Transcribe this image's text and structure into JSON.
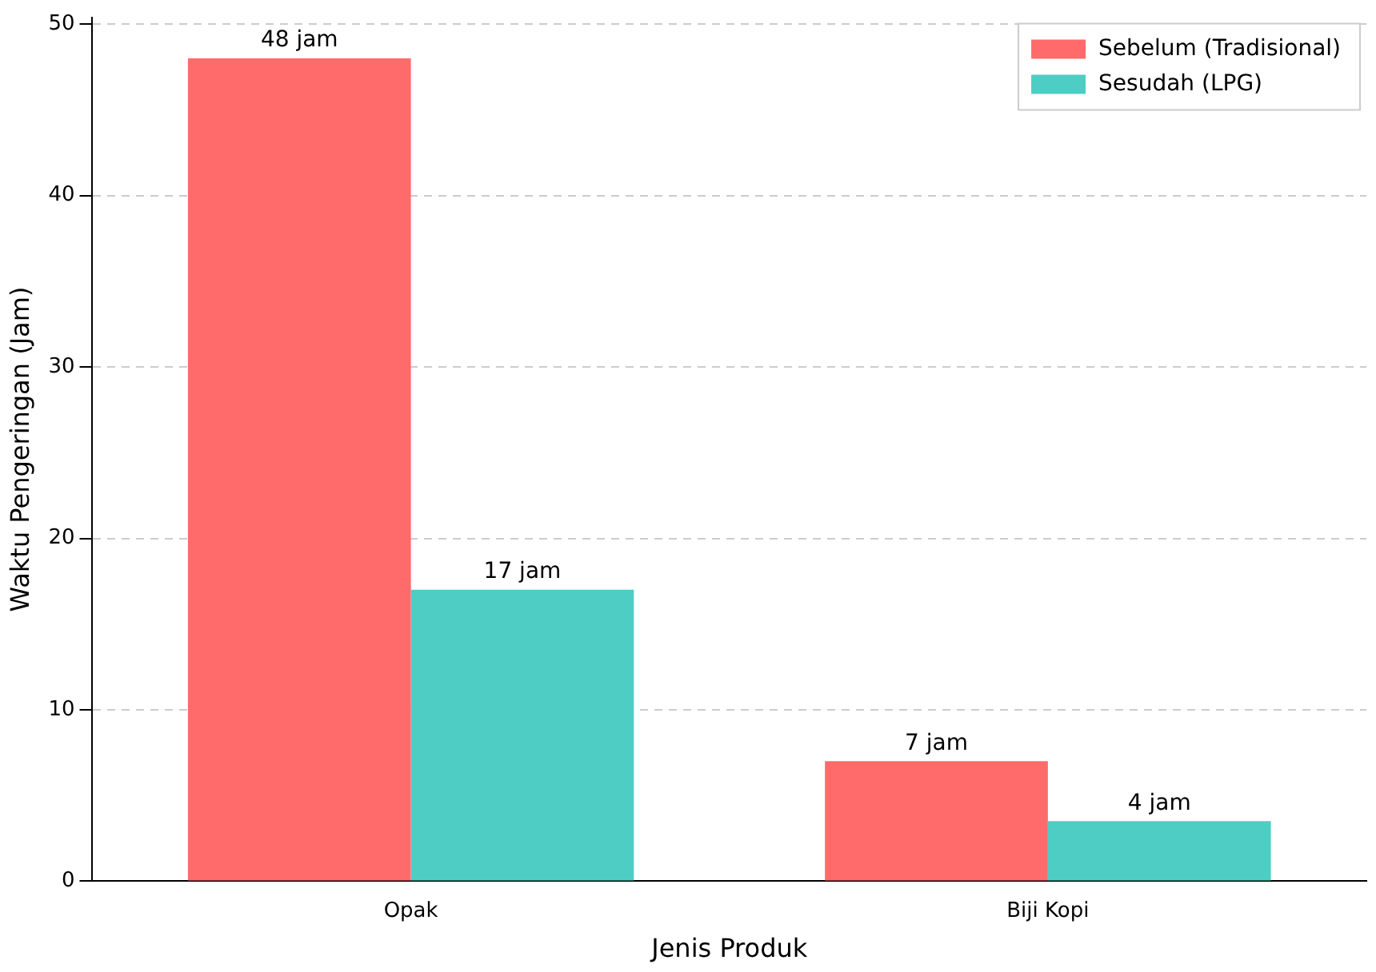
{
  "chart_data": {
    "type": "bar",
    "xlabel": "Jenis Produk",
    "ylabel": "Waktu Pengeringan (Jam)",
    "categories": [
      "Opak",
      "Biji Kopi"
    ],
    "series": [
      {
        "name": "Sebelum (Tradisional)",
        "color": "#ff6b6b",
        "values": [
          48,
          7
        ],
        "value_labels": [
          "48 jam",
          "7 jam"
        ]
      },
      {
        "name": "Sesudah (LPG)",
        "color": "#4ecdc4",
        "values": [
          17,
          3.5
        ],
        "value_labels": [
          "17 jam",
          "4 jam"
        ]
      }
    ],
    "ylim": [
      0,
      50.4
    ],
    "yticks": [
      0,
      10,
      20,
      30,
      40,
      50
    ],
    "grid": "y",
    "legend": "top right"
  }
}
